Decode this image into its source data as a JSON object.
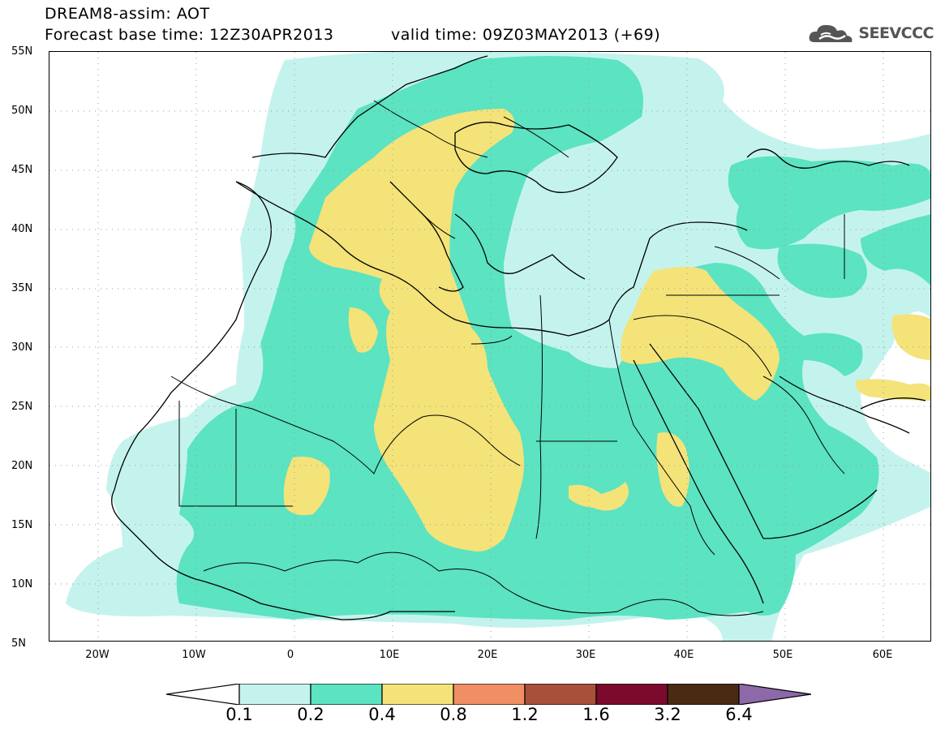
{
  "header": {
    "title": "DREAM8-assim: AOT",
    "base_time": "Forecast base time: 12Z30APR2013",
    "valid_time": "valid time: 09Z03MAY2013 (+69)"
  },
  "logo": {
    "text": "SEEVCCC",
    "icon": "cloud-icon"
  },
  "map": {
    "lon_range": [
      -25,
      65
    ],
    "lat_range": [
      5,
      55
    ],
    "y_ticks": [
      "55N",
      "50N",
      "45N",
      "40N",
      "35N",
      "30N",
      "25N",
      "20N",
      "15N",
      "10N",
      "5N"
    ],
    "x_ticks": [
      "20W",
      "10W",
      "0",
      "10E",
      "20E",
      "30E",
      "40E",
      "50E",
      "60E"
    ],
    "colors": {
      "c01": "#c4f3ee",
      "c02": "#5ce3c1",
      "c04": "#f4e379",
      "grid": "#999999",
      "border": "#000000"
    }
  },
  "colorbar": {
    "labels": [
      "0.1",
      "0.2",
      "0.4",
      "0.8",
      "1.2",
      "1.6",
      "3.2",
      "6.4"
    ],
    "colors": [
      "#ffffff",
      "#c4f3ee",
      "#5ce3c1",
      "#f4e379",
      "#ef8f63",
      "#a9503b",
      "#7c0a2c",
      "#4b2a14",
      "#8d69a8"
    ]
  }
}
